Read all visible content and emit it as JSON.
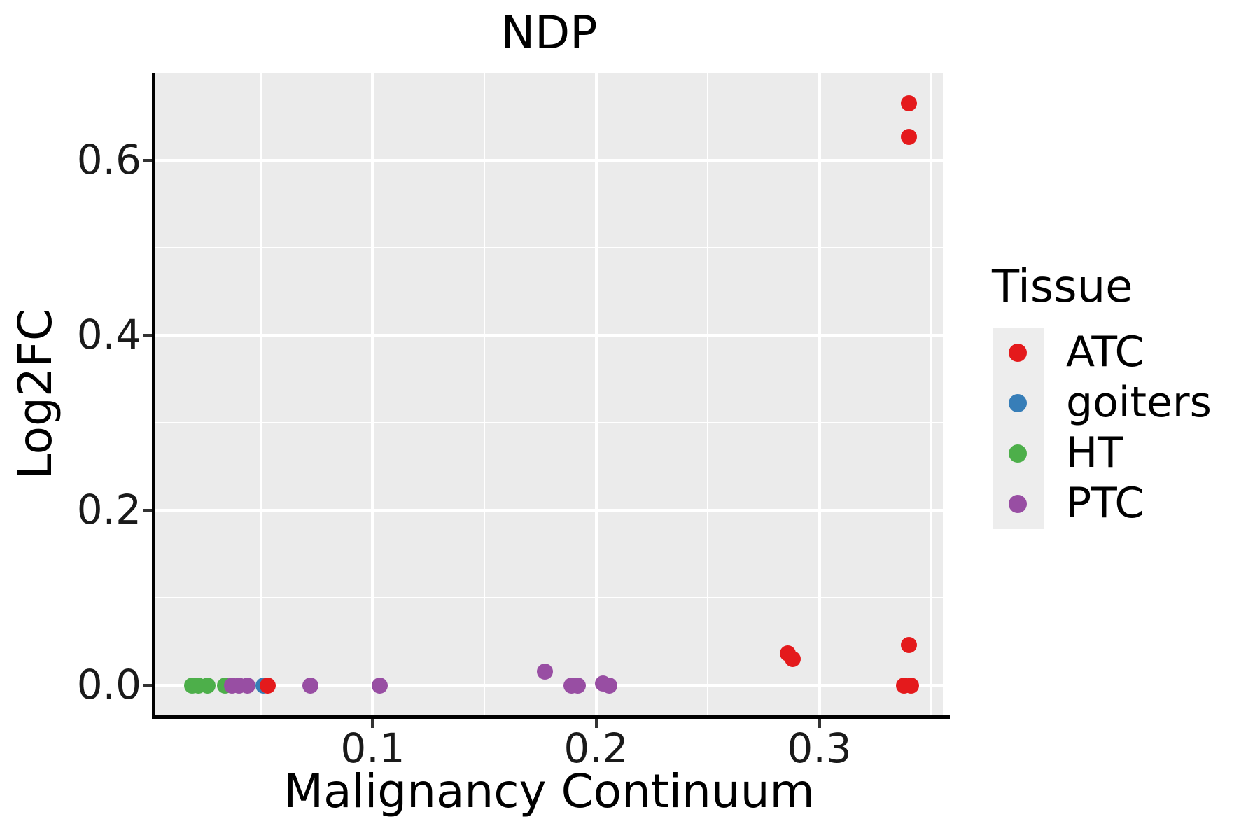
{
  "title": "NDP",
  "axes": {
    "x": {
      "label": "Malignancy Continuum",
      "tick_labels": [
        "0.1",
        "0.2",
        "0.3"
      ],
      "tick_values": [
        0.1,
        0.2,
        0.3
      ],
      "minor_tick_values": [
        0.05,
        0.15,
        0.25,
        0.35
      ],
      "range": [
        0.0027,
        0.3553
      ]
    },
    "y": {
      "label": "Log2FC",
      "tick_labels": [
        "0.0",
        "0.2",
        "0.4",
        "0.6"
      ],
      "tick_values": [
        0.0,
        0.2,
        0.4,
        0.6
      ],
      "minor_tick_values": [
        0.1,
        0.3,
        0.5
      ],
      "range": [
        -0.034,
        0.7
      ]
    }
  },
  "legend": {
    "title": "Tissue",
    "entries": [
      {
        "label": "ATC",
        "color": "#E41A1C"
      },
      {
        "label": "goiters",
        "color": "#377EB8"
      },
      {
        "label": "HT",
        "color": "#4DAF4A"
      },
      {
        "label": "PTC",
        "color": "#984EA3"
      }
    ]
  },
  "colors": {
    "panel_background": "#EBEBEB",
    "legend_key_background": "#EDEDED",
    "gridline": "#FFFFFF",
    "axis_line": "#000000",
    "text": "#000000"
  },
  "chart_data": {
    "type": "scatter",
    "title": "NDP",
    "xlabel": "Malignancy Continuum",
    "ylabel": "Log2FC",
    "xlim": [
      0.0027,
      0.3553
    ],
    "ylim": [
      -0.034,
      0.7
    ],
    "grid": true,
    "legend_position": "right",
    "series": [
      {
        "name": "HT",
        "color": "#4DAF4A",
        "points": [
          [
            0.019,
            0.0
          ],
          [
            0.022,
            0.0
          ],
          [
            0.026,
            0.0
          ],
          [
            0.034,
            0.0
          ]
        ]
      },
      {
        "name": "goiters",
        "color": "#377EB8",
        "points": [
          [
            0.051,
            0.0
          ]
        ]
      },
      {
        "name": "PTC",
        "color": "#984EA3",
        "points": [
          [
            0.037,
            0.0
          ],
          [
            0.04,
            0.0
          ],
          [
            0.044,
            0.0
          ],
          [
            0.072,
            0.0
          ],
          [
            0.103,
            0.0
          ],
          [
            0.177,
            0.016
          ],
          [
            0.189,
            0.0
          ],
          [
            0.192,
            0.0
          ],
          [
            0.203,
            0.002
          ],
          [
            0.206,
            0.0
          ]
        ]
      },
      {
        "name": "ATC",
        "color": "#E41A1C",
        "points": [
          [
            0.053,
            0.0
          ],
          [
            0.286,
            0.037
          ],
          [
            0.288,
            0.03
          ],
          [
            0.338,
            0.0
          ],
          [
            0.341,
            0.0
          ],
          [
            0.34,
            0.046
          ],
          [
            0.34,
            0.627
          ],
          [
            0.34,
            0.665
          ]
        ]
      }
    ]
  }
}
